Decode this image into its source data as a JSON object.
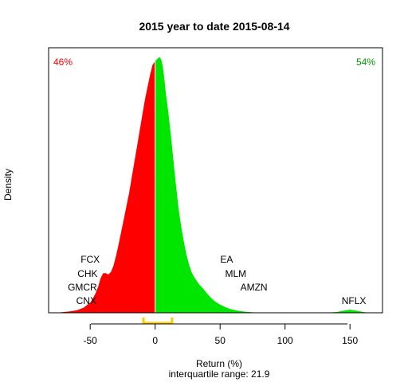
{
  "chart_data": {
    "type": "area",
    "title": "2015  year to date 2015-08-14",
    "xlabel": "Return (%)",
    "ylabel": "Density",
    "subtitle": "interquartile range: 21.9",
    "xlim": [
      -82,
      175
    ],
    "ylim": [
      0,
      1
    ],
    "xticks": [
      -50,
      0,
      50,
      100,
      150
    ],
    "tick_labels": [
      "-50",
      "0",
      "50",
      "100",
      "150"
    ],
    "split_at": 0,
    "negative_share_label": "46%",
    "positive_share_label": "54%",
    "iqr_bracket": [
      -9,
      13
    ],
    "density_curve": {
      "x": [
        -80,
        -75,
        -70,
        -65,
        -60,
        -55,
        -50,
        -48,
        -46,
        -44,
        -42,
        -40,
        -38,
        -36,
        -34,
        -32,
        -30,
        -28,
        -26,
        -24,
        -22,
        -20,
        -18,
        -16,
        -14,
        -12,
        -10,
        -8,
        -6,
        -4,
        -2,
        0,
        1,
        2,
        3,
        4,
        5,
        6,
        7,
        8,
        10,
        12,
        14,
        16,
        18,
        20,
        22,
        24,
        26,
        28,
        30,
        32,
        34,
        36,
        38,
        40,
        42,
        44,
        46,
        48,
        50,
        52,
        54,
        56,
        58,
        60,
        62,
        65,
        70,
        75,
        80,
        85,
        90,
        100,
        110,
        120,
        130,
        140,
        145,
        150,
        155,
        160,
        165,
        170,
        175
      ],
      "y": [
        0.0,
        0.001,
        0.003,
        0.006,
        0.01,
        0.02,
        0.04,
        0.055,
        0.075,
        0.1,
        0.135,
        0.155,
        0.155,
        0.15,
        0.16,
        0.185,
        0.225,
        0.27,
        0.32,
        0.37,
        0.42,
        0.47,
        0.53,
        0.59,
        0.65,
        0.71,
        0.77,
        0.83,
        0.88,
        0.93,
        0.97,
        0.985,
        0.99,
        0.995,
        1.0,
        0.998,
        0.985,
        0.96,
        0.92,
        0.87,
        0.79,
        0.7,
        0.6,
        0.5,
        0.41,
        0.34,
        0.28,
        0.23,
        0.19,
        0.16,
        0.14,
        0.125,
        0.11,
        0.1,
        0.088,
        0.075,
        0.064,
        0.054,
        0.045,
        0.038,
        0.032,
        0.027,
        0.022,
        0.018,
        0.015,
        0.012,
        0.01,
        0.007,
        0.004,
        0.002,
        0.001,
        0.0,
        0.0,
        0.0,
        0.0,
        0.0,
        0.0,
        0.003,
        0.008,
        0.012,
        0.008,
        0.003,
        0.0,
        0.0,
        0.0
      ]
    },
    "colors": {
      "negative_fill": "#ff0000",
      "positive_fill": "#00e600",
      "negative_text": "#ff0000",
      "positive_text": "#009900",
      "iqr_bracket": "#ffcc00",
      "zero_line": "#ffffff",
      "baseline": "#b3b3b3",
      "frame": "#000000"
    },
    "annotations": [
      {
        "label": "FCX",
        "x": -50,
        "row": 0
      },
      {
        "label": "CHK",
        "x": -52,
        "row": 1
      },
      {
        "label": "GMCR",
        "x": -56,
        "row": 2
      },
      {
        "label": "CNX",
        "x": -53,
        "row": 3
      },
      {
        "label": "EA",
        "x": 55,
        "row": 0
      },
      {
        "label": "MLM",
        "x": 62,
        "row": 1
      },
      {
        "label": "AMZN",
        "x": 76,
        "row": 2
      },
      {
        "label": "NFLX",
        "x": 153,
        "row": 3
      }
    ]
  }
}
